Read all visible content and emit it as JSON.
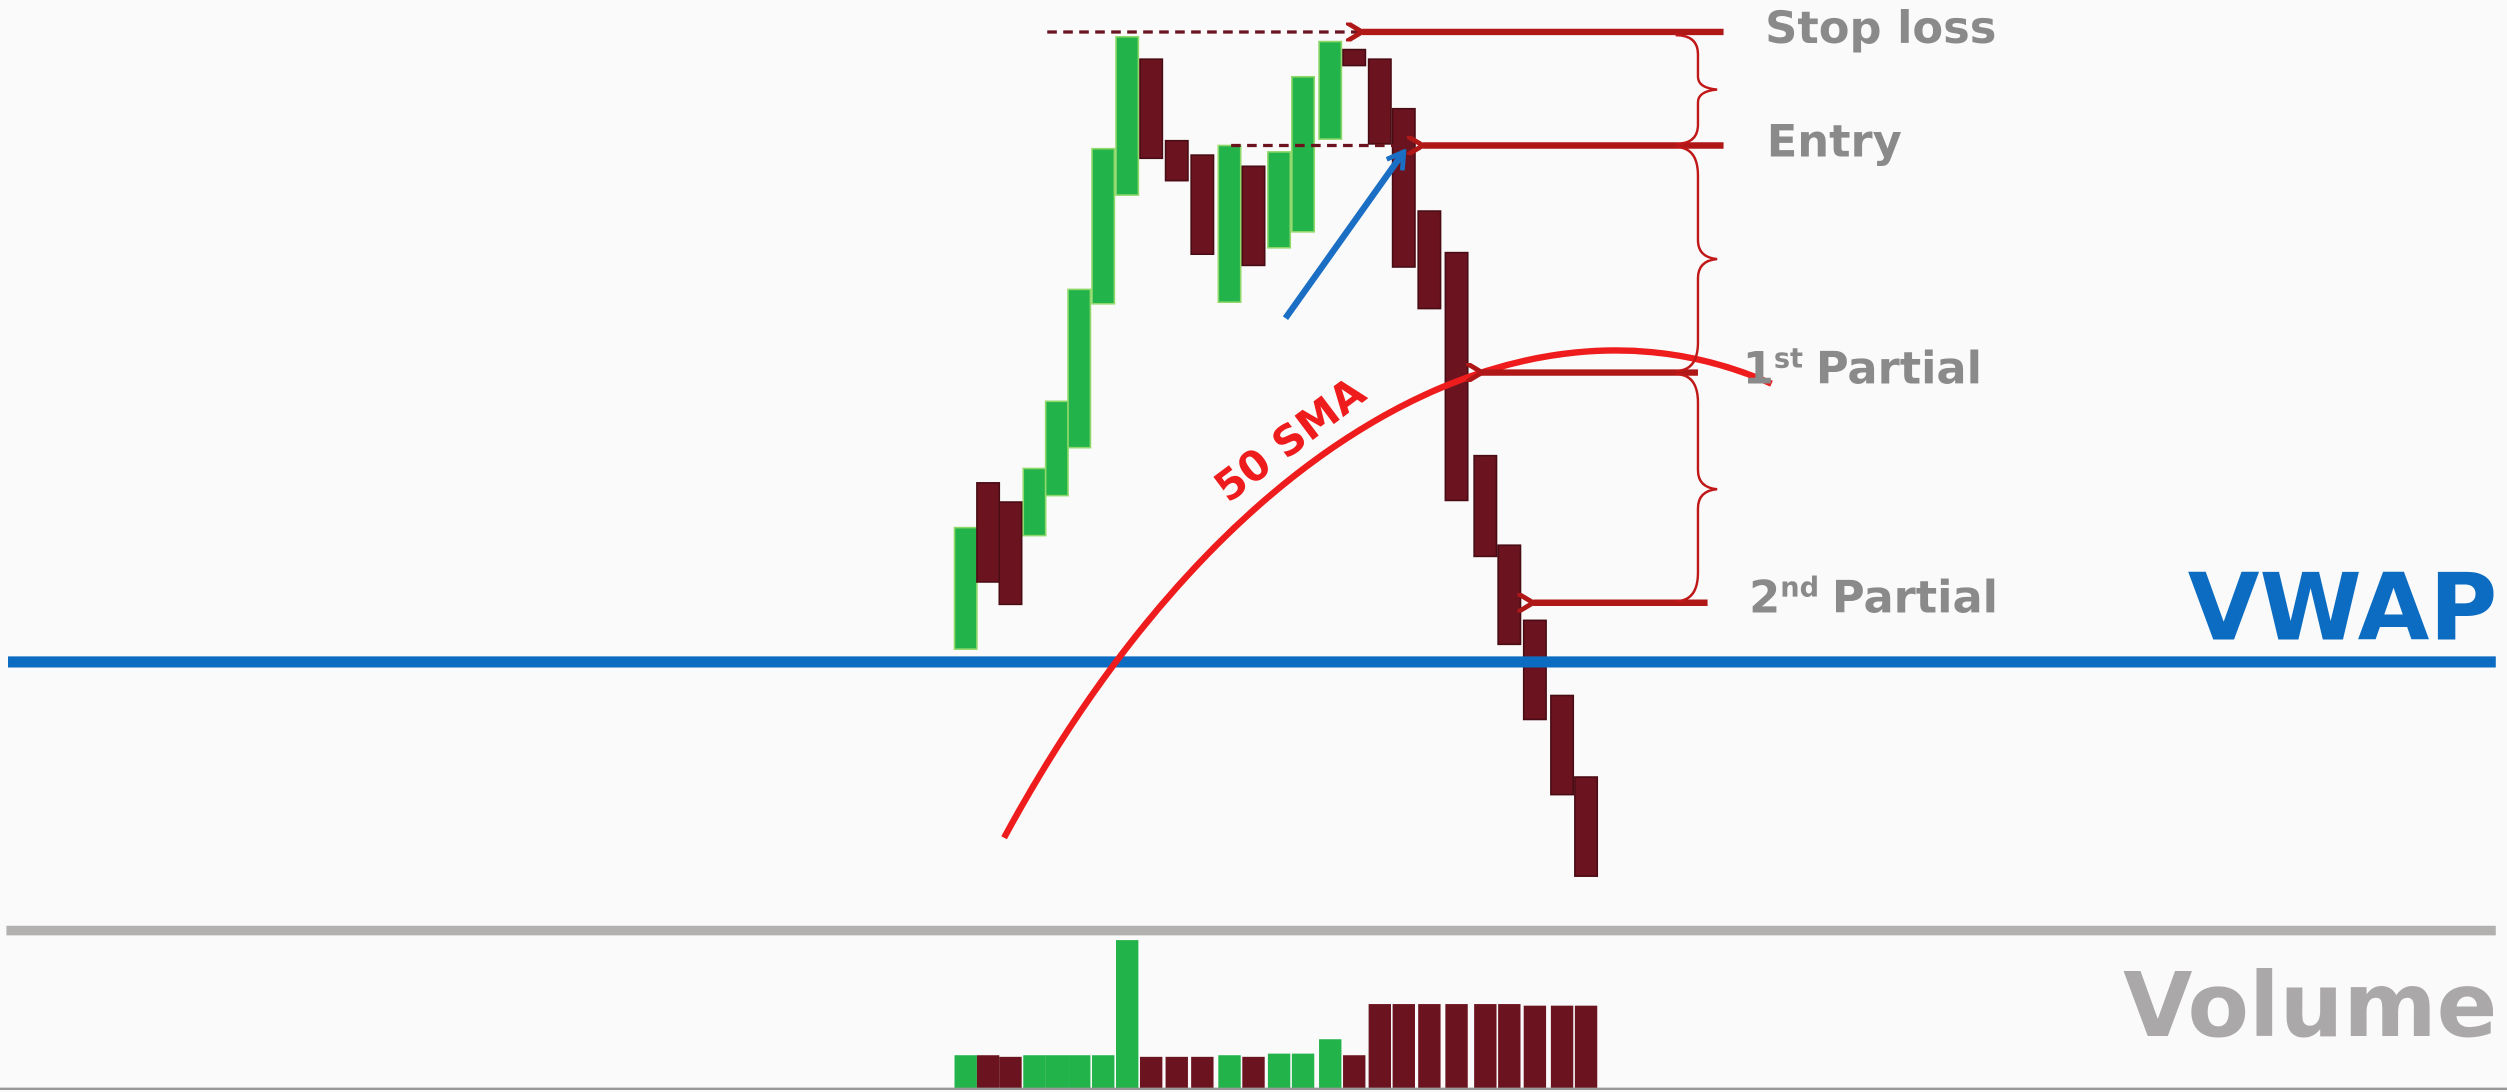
{
  "labels": {
    "stop_loss": "Stop loss",
    "entry": "Entry",
    "first_partial": {
      "number": "1",
      "suffix": "st",
      "text": "Partial"
    },
    "second_partial": {
      "number": "2",
      "suffix": "nd",
      "text": "Partial"
    },
    "sma": "50 SMA",
    "vwap": "VWAP",
    "volume": "Volume"
  }
}
